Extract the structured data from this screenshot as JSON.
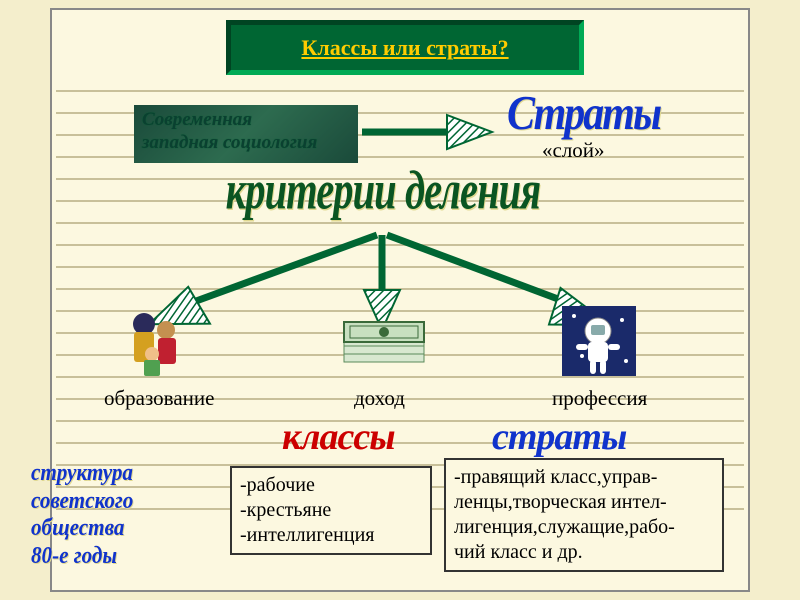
{
  "colors": {
    "page_bg": "#f4eecc",
    "frame_bg": "#fcf8e0",
    "line_color": "#c8c09a",
    "title_bg": "#006633",
    "title_text": "#ffcc00",
    "arrow_color": "#006633",
    "red": "#cc0000",
    "blue": "#1033cc",
    "green_text": "#0a5522"
  },
  "title": "Классы или страты?",
  "sociology_box": {
    "line1": "Современная",
    "line2": "западная социология"
  },
  "strata_big": "Страты",
  "sloy": "«слой»",
  "kriterii": "критерии деления",
  "criteria": {
    "education": "образование",
    "income": "доход",
    "profession": "профессия"
  },
  "klassy_label": "классы",
  "straty_label": "страты",
  "soviet_structure": {
    "l1": "структура",
    "l2": "советского",
    "l3": "общества",
    "l4": "80-е годы"
  },
  "klassy_list": {
    "i1": "-рабочие",
    "i2": "-крестьяне",
    "i3": "-интеллигенция"
  },
  "straty_list": {
    "i1": "-правящий класс,управ-",
    "i2": "ленцы,творческая интел-",
    "i3": "лигенция,служащие,рабо-",
    "i4": "чий класс и др."
  },
  "line_count": 20,
  "line_top_start": 80,
  "line_gap": 22
}
